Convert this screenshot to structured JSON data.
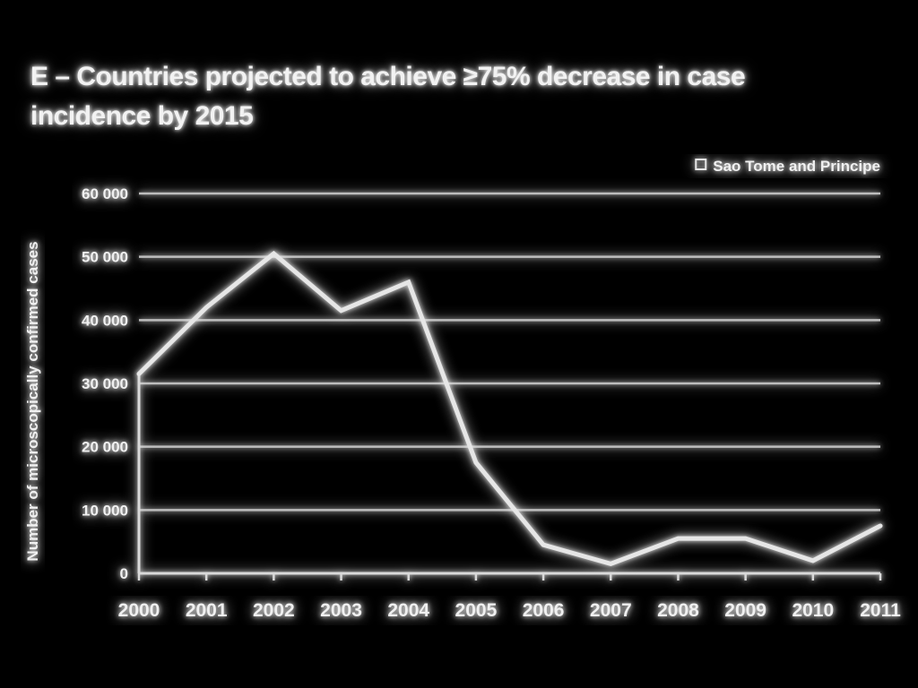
{
  "chart_data": {
    "type": "line",
    "title": "E – Countries projected to achieve ≥75% decrease in case incidence by 2015",
    "xlabel": "",
    "ylabel": "Number of microscopically confirmed cases",
    "x": [
      "2000",
      "2001",
      "2002",
      "2003",
      "2004",
      "2005",
      "2006",
      "2007",
      "2008",
      "2009",
      "2010",
      "2011"
    ],
    "ylim": [
      0,
      60000
    ],
    "yticks": [
      0,
      10000,
      20000,
      30000,
      40000,
      50000,
      60000
    ],
    "ytick_labels": [
      "0",
      "10 000",
      "20 000",
      "30 000",
      "40 000",
      "50 000",
      "60 000"
    ],
    "grid": true,
    "legend_position": "top-right",
    "series": [
      {
        "name": "Sao Tome and Principe",
        "color": "#e6e6e6",
        "values": [
          31500,
          42000,
          50500,
          41500,
          46000,
          17500,
          4500,
          1500,
          5500,
          5500,
          2000,
          7500
        ]
      }
    ]
  }
}
